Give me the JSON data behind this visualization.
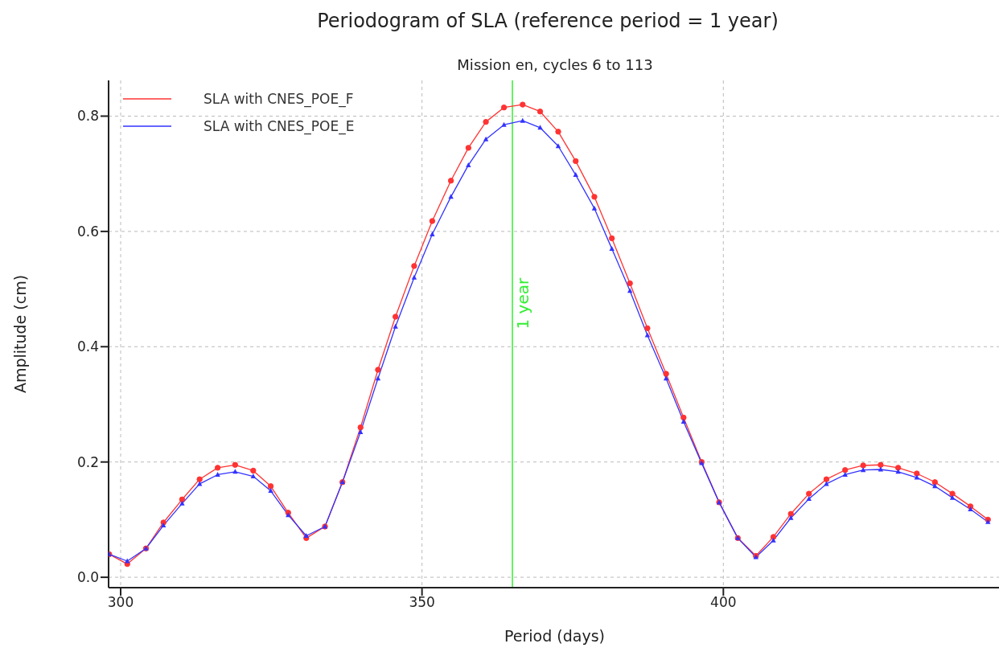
{
  "chart_data": {
    "type": "line",
    "title": "Periodogram of SLA (reference period = 1 year)",
    "subtitle": "Mission en, cycles 6 to 113",
    "xlabel": "Period (days)",
    "ylabel": "Amplitude (cm)",
    "x": [
      298.1,
      301.1,
      304.2,
      307.1,
      310.2,
      313.1,
      316.1,
      319.0,
      322.0,
      324.9,
      327.8,
      330.8,
      333.9,
      336.8,
      339.8,
      342.7,
      345.6,
      348.7,
      351.7,
      354.8,
      357.7,
      360.6,
      363.6,
      366.7,
      369.6,
      372.6,
      375.5,
      378.6,
      381.5,
      384.5,
      387.4,
      390.5,
      393.4,
      396.4,
      399.3,
      402.4,
      405.4,
      408.3,
      411.2,
      414.2,
      417.1,
      420.2,
      423.2,
      426.1,
      429.0,
      432.1,
      435.1,
      438.0,
      441.0,
      443.9
    ],
    "series": [
      {
        "name": "SLA with CNES_POE_F",
        "color": "#ff3333",
        "marker": "circle",
        "values": [
          0.04,
          0.023,
          0.05,
          0.095,
          0.135,
          0.17,
          0.19,
          0.195,
          0.185,
          0.158,
          0.112,
          0.068,
          0.088,
          0.165,
          0.26,
          0.36,
          0.452,
          0.54,
          0.618,
          0.688,
          0.745,
          0.79,
          0.815,
          0.82,
          0.808,
          0.773,
          0.722,
          0.66,
          0.588,
          0.51,
          0.432,
          0.353,
          0.277,
          0.2,
          0.13,
          0.068,
          0.037,
          0.07,
          0.11,
          0.145,
          0.17,
          0.186,
          0.194,
          0.195,
          0.19,
          0.18,
          0.165,
          0.145,
          0.123,
          0.1
        ]
      },
      {
        "name": "SLA with CNES_POE_E",
        "color": "#3333ff",
        "marker": "triangle",
        "values": [
          0.04,
          0.028,
          0.05,
          0.09,
          0.128,
          0.162,
          0.178,
          0.183,
          0.175,
          0.15,
          0.108,
          0.072,
          0.088,
          0.165,
          0.252,
          0.345,
          0.435,
          0.52,
          0.595,
          0.66,
          0.715,
          0.76,
          0.785,
          0.792,
          0.78,
          0.748,
          0.698,
          0.64,
          0.57,
          0.497,
          0.42,
          0.345,
          0.27,
          0.198,
          0.13,
          0.068,
          0.035,
          0.064,
          0.103,
          0.136,
          0.162,
          0.178,
          0.186,
          0.187,
          0.183,
          0.173,
          0.158,
          0.138,
          0.118,
          0.096
        ]
      }
    ],
    "xlim": [
      298,
      446
    ],
    "xticks": [
      300,
      350,
      400
    ],
    "ylim": [
      -0.018,
      0.862
    ],
    "yticks": [
      {
        "value": 0,
        "label": "0.0"
      },
      0.2,
      0.4,
      0.6,
      0.8
    ],
    "ref_lines": [
      {
        "axis": "x",
        "value": 365,
        "label": "1 year",
        "color": "#33ee33"
      }
    ],
    "grid": true,
    "legend": "top left",
    "line_style": "solid"
  }
}
